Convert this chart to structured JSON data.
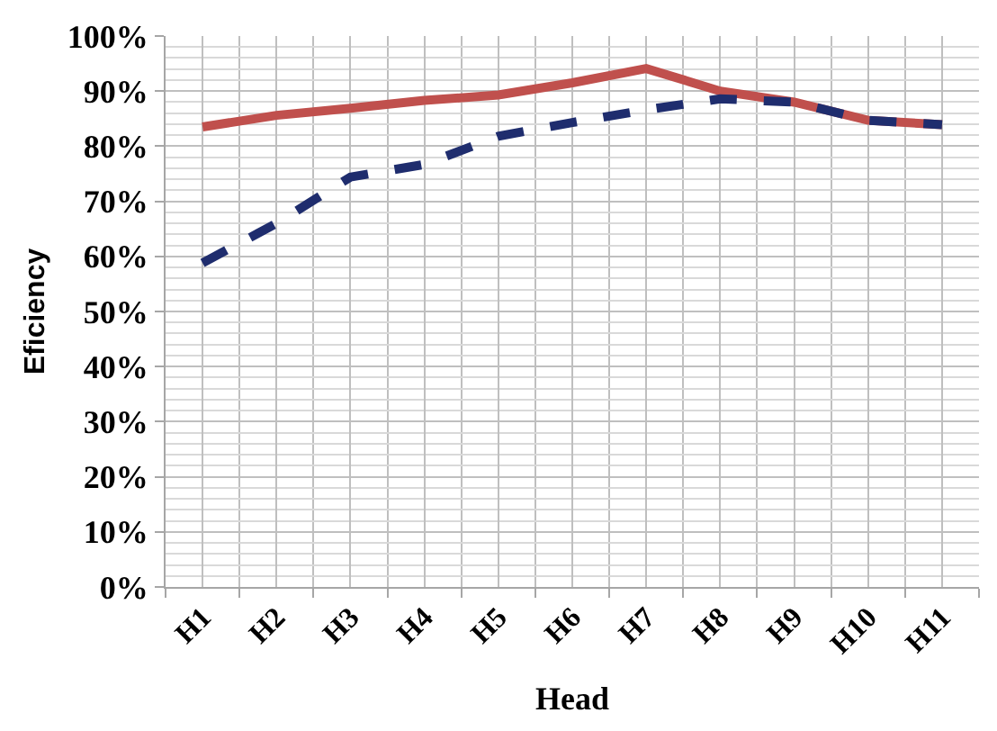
{
  "chart_data": {
    "type": "line",
    "xlabel": "Head",
    "ylabel": "Eficiency",
    "categories": [
      "H1",
      "H2",
      "H3",
      "H4",
      "H5",
      "H6",
      "H7",
      "H8",
      "H9",
      "H10",
      "H11"
    ],
    "series": [
      {
        "color": "#c0504d",
        "line_style": "solid",
        "values": [
          83.5,
          85.6,
          86.9,
          88.3,
          89.3,
          91.5,
          94.1,
          90,
          88,
          84.7,
          83.9
        ]
      },
      {
        "color": "#1f2d6e",
        "line_style": "dashed",
        "values": [
          58.8,
          66,
          74.4,
          76.7,
          81.8,
          84.3,
          86.6,
          88.6,
          88,
          84.7,
          83.9
        ]
      }
    ],
    "ylim": [
      0,
      100
    ],
    "yticks": [
      {
        "value": 0,
        "label": "0%"
      },
      {
        "value": 10,
        "label": "10%"
      },
      {
        "value": 20,
        "label": "20%"
      },
      {
        "value": 30,
        "label": "30%"
      },
      {
        "value": 40,
        "label": "40%"
      },
      {
        "value": 50,
        "label": "50%"
      },
      {
        "value": 60,
        "label": "60%"
      },
      {
        "value": 70,
        "label": "70%"
      },
      {
        "value": 80,
        "label": "80%"
      },
      {
        "value": 90,
        "label": "90%"
      },
      {
        "value": 100,
        "label": "100%"
      }
    ],
    "grid": true
  }
}
